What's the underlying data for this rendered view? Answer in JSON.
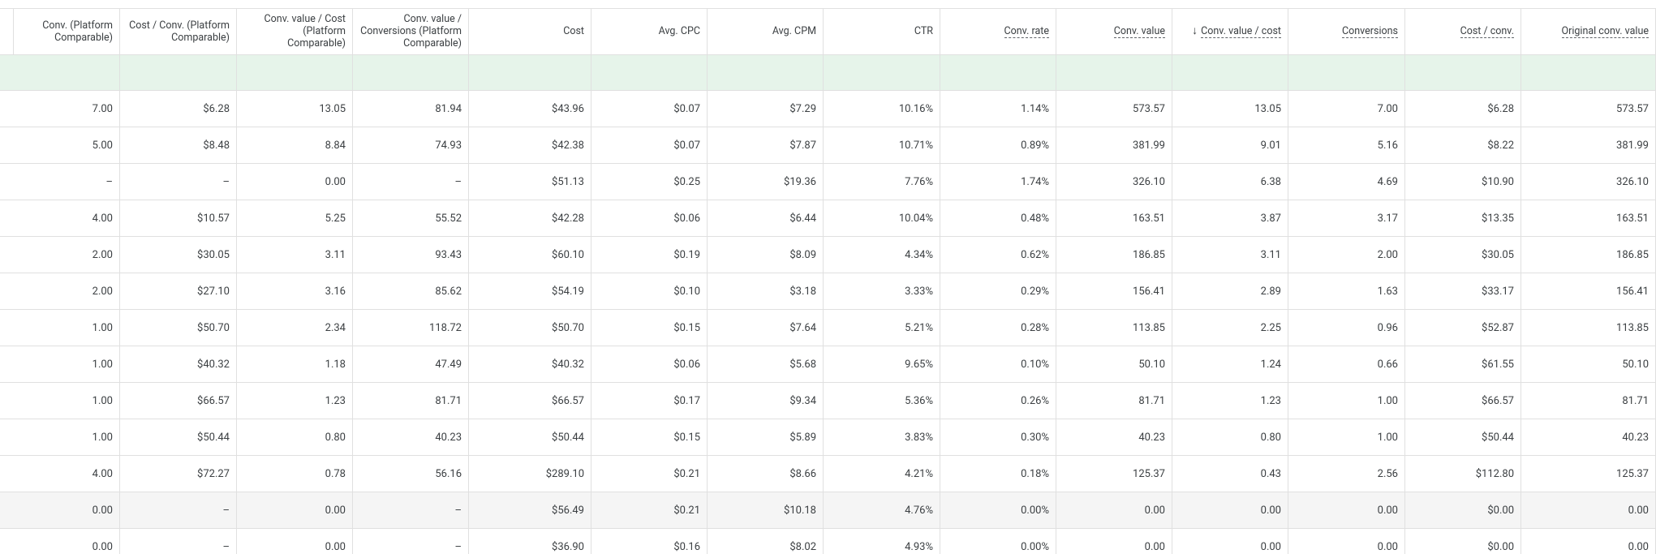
{
  "header": {
    "columns": [
      "Conv. (Platform Comparable)",
      "Cost / Conv. (Platform Comparable)",
      "Conv. value / Cost (Platform Comparable)",
      "Conv. value / Conversions (Platform Comparable)",
      "Cost",
      "Avg. CPC",
      "Avg. CPM",
      "CTR",
      "Conv. rate",
      "Conv. value",
      "Conv. value / cost",
      "Conversions",
      "Cost / conv.",
      "Original conv. value"
    ]
  },
  "table": {
    "rows": [
      [
        "7.00",
        "$6.28",
        "13.05",
        "81.94",
        "$43.96",
        "$0.07",
        "$7.29",
        "10.16%",
        "1.14%",
        "573.57",
        "13.05",
        "7.00",
        "$6.28",
        "573.57"
      ],
      [
        "5.00",
        "$8.48",
        "8.84",
        "74.93",
        "$42.38",
        "$0.07",
        "$7.87",
        "10.71%",
        "0.89%",
        "381.99",
        "9.01",
        "5.16",
        "$8.22",
        "381.99"
      ],
      [
        "–",
        "–",
        "0.00",
        "–",
        "$51.13",
        "$0.25",
        "$19.36",
        "7.76%",
        "1.74%",
        "326.10",
        "6.38",
        "4.69",
        "$10.90",
        "326.10"
      ],
      [
        "4.00",
        "$10.57",
        "5.25",
        "55.52",
        "$42.28",
        "$0.06",
        "$6.44",
        "10.04%",
        "0.48%",
        "163.51",
        "3.87",
        "3.17",
        "$13.35",
        "163.51"
      ],
      [
        "2.00",
        "$30.05",
        "3.11",
        "93.43",
        "$60.10",
        "$0.19",
        "$8.09",
        "4.34%",
        "0.62%",
        "186.85",
        "3.11",
        "2.00",
        "$30.05",
        "186.85"
      ],
      [
        "2.00",
        "$27.10",
        "3.16",
        "85.62",
        "$54.19",
        "$0.10",
        "$3.18",
        "3.33%",
        "0.29%",
        "156.41",
        "2.89",
        "1.63",
        "$33.17",
        "156.41"
      ],
      [
        "1.00",
        "$50.70",
        "2.34",
        "118.72",
        "$50.70",
        "$0.15",
        "$7.64",
        "5.21%",
        "0.28%",
        "113.85",
        "2.25",
        "0.96",
        "$52.87",
        "113.85"
      ],
      [
        "1.00",
        "$40.32",
        "1.18",
        "47.49",
        "$40.32",
        "$0.06",
        "$5.68",
        "9.65%",
        "0.10%",
        "50.10",
        "1.24",
        "0.66",
        "$61.55",
        "50.10"
      ],
      [
        "1.00",
        "$66.57",
        "1.23",
        "81.71",
        "$66.57",
        "$0.17",
        "$9.34",
        "5.36%",
        "0.26%",
        "81.71",
        "1.23",
        "1.00",
        "$66.57",
        "81.71"
      ],
      [
        "1.00",
        "$50.44",
        "0.80",
        "40.23",
        "$50.44",
        "$0.15",
        "$5.89",
        "3.83%",
        "0.30%",
        "40.23",
        "0.80",
        "1.00",
        "$50.44",
        "40.23"
      ],
      [
        "4.00",
        "$72.27",
        "0.78",
        "56.16",
        "$289.10",
        "$0.21",
        "$8.66",
        "4.21%",
        "0.18%",
        "125.37",
        "0.43",
        "2.56",
        "$112.80",
        "125.37"
      ],
      [
        "0.00",
        "–",
        "0.00",
        "–",
        "$56.49",
        "$0.21",
        "$10.18",
        "4.76%",
        "0.00%",
        "0.00",
        "0.00",
        "0.00",
        "$0.00",
        "0.00"
      ],
      [
        "0.00",
        "–",
        "0.00",
        "–",
        "$36.90",
        "$0.16",
        "$8.02",
        "4.93%",
        "0.00%",
        "0.00",
        "0.00",
        "0.00",
        "$0.00",
        "0.00"
      ]
    ]
  }
}
